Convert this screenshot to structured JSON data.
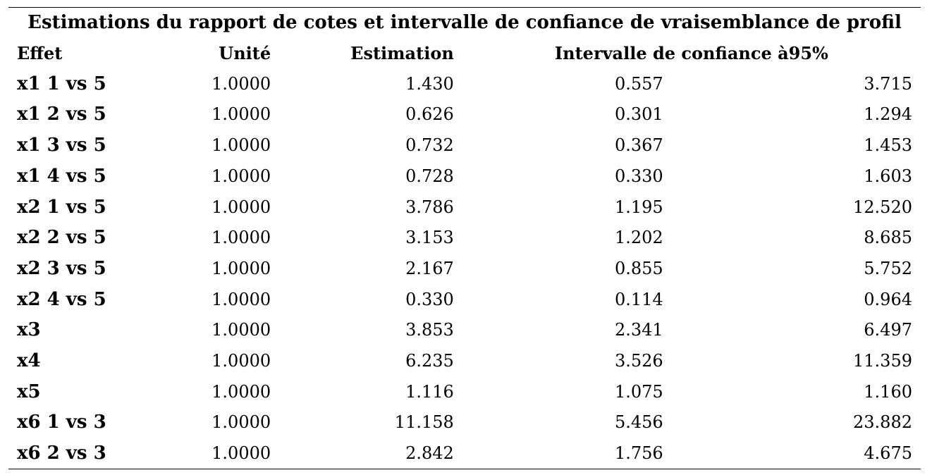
{
  "table": {
    "caption": "Estimations du rapport de cotes et intervalle de confiance de vraisemblance de profil",
    "headers": {
      "effect": "Effet",
      "unit": "Unité",
      "estimate": "Estimation",
      "ci": "Intervalle de confiance à95%"
    },
    "rows": [
      {
        "effect": "x1 1 vs 5",
        "unit": "1.0000",
        "estimate": "1.430",
        "lower": "0.557",
        "upper": "3.715"
      },
      {
        "effect": "x1 2 vs 5",
        "unit": "1.0000",
        "estimate": "0.626",
        "lower": "0.301",
        "upper": "1.294"
      },
      {
        "effect": "x1 3 vs 5",
        "unit": "1.0000",
        "estimate": "0.732",
        "lower": "0.367",
        "upper": "1.453"
      },
      {
        "effect": "x1 4 vs 5",
        "unit": "1.0000",
        "estimate": "0.728",
        "lower": "0.330",
        "upper": "1.603"
      },
      {
        "effect": "x2 1 vs 5",
        "unit": "1.0000",
        "estimate": "3.786",
        "lower": "1.195",
        "upper": "12.520"
      },
      {
        "effect": "x2 2 vs 5",
        "unit": "1.0000",
        "estimate": "3.153",
        "lower": "1.202",
        "upper": "8.685"
      },
      {
        "effect": "x2 3 vs 5",
        "unit": "1.0000",
        "estimate": "2.167",
        "lower": "0.855",
        "upper": "5.752"
      },
      {
        "effect": "x2 4 vs 5",
        "unit": "1.0000",
        "estimate": "0.330",
        "lower": "0.114",
        "upper": "0.964"
      },
      {
        "effect": "x3",
        "unit": "1.0000",
        "estimate": "3.853",
        "lower": "2.341",
        "upper": "6.497"
      },
      {
        "effect": "x4",
        "unit": "1.0000",
        "estimate": "6.235",
        "lower": "3.526",
        "upper": "11.359"
      },
      {
        "effect": "x5",
        "unit": "1.0000",
        "estimate": "1.116",
        "lower": "1.075",
        "upper": "1.160"
      },
      {
        "effect": "x6 1 vs 3",
        "unit": "1.0000",
        "estimate": "11.158",
        "lower": "5.456",
        "upper": "23.882"
      },
      {
        "effect": "x6 2 vs 3",
        "unit": "1.0000",
        "estimate": "2.842",
        "lower": "1.756",
        "upper": "4.675"
      }
    ]
  }
}
